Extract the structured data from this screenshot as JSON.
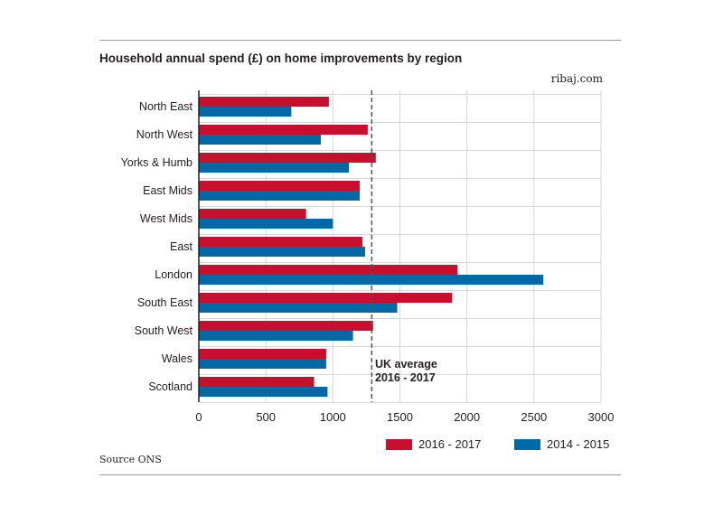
{
  "title": "Household annual spend (£) on home improvements by region",
  "brand": "ribaj.com",
  "source": "Source ONS",
  "colors": {
    "series_2016": "#c8102e",
    "series_2014": "#0069a6",
    "grid": "#d6d6d6",
    "axis": "#231f20",
    "reference": "#555555"
  },
  "annotation": {
    "line1": "UK average",
    "line2": "2016 - 2017"
  },
  "chart_data": {
    "type": "bar",
    "orientation": "horizontal",
    "title": "Household annual spend (£) on home improvements by region",
    "xlabel": "",
    "ylabel": "",
    "xlim": [
      0,
      3000
    ],
    "xticks": [
      0,
      500,
      1000,
      1500,
      2000,
      2500,
      3000
    ],
    "grid": "vertical",
    "legend": "bottom-right",
    "categories": [
      "North East",
      "North West",
      "Yorks & Humb",
      "East Mids",
      "West Mids",
      "East",
      "London",
      "South East",
      "South West",
      "Wales",
      "Scotland"
    ],
    "series": [
      {
        "name": "2016 - 2017",
        "color": "#c8102e",
        "values": [
          970,
          1260,
          1320,
          1200,
          800,
          1220,
          1930,
          1890,
          1300,
          950,
          860
        ]
      },
      {
        "name": "2014 - 2015",
        "color": "#0069a6",
        "values": [
          690,
          910,
          1120,
          1200,
          1000,
          1240,
          2570,
          1480,
          1150,
          950,
          960
        ]
      }
    ],
    "reference_line": {
      "value": 1290,
      "label": "UK average 2016 - 2017"
    }
  }
}
